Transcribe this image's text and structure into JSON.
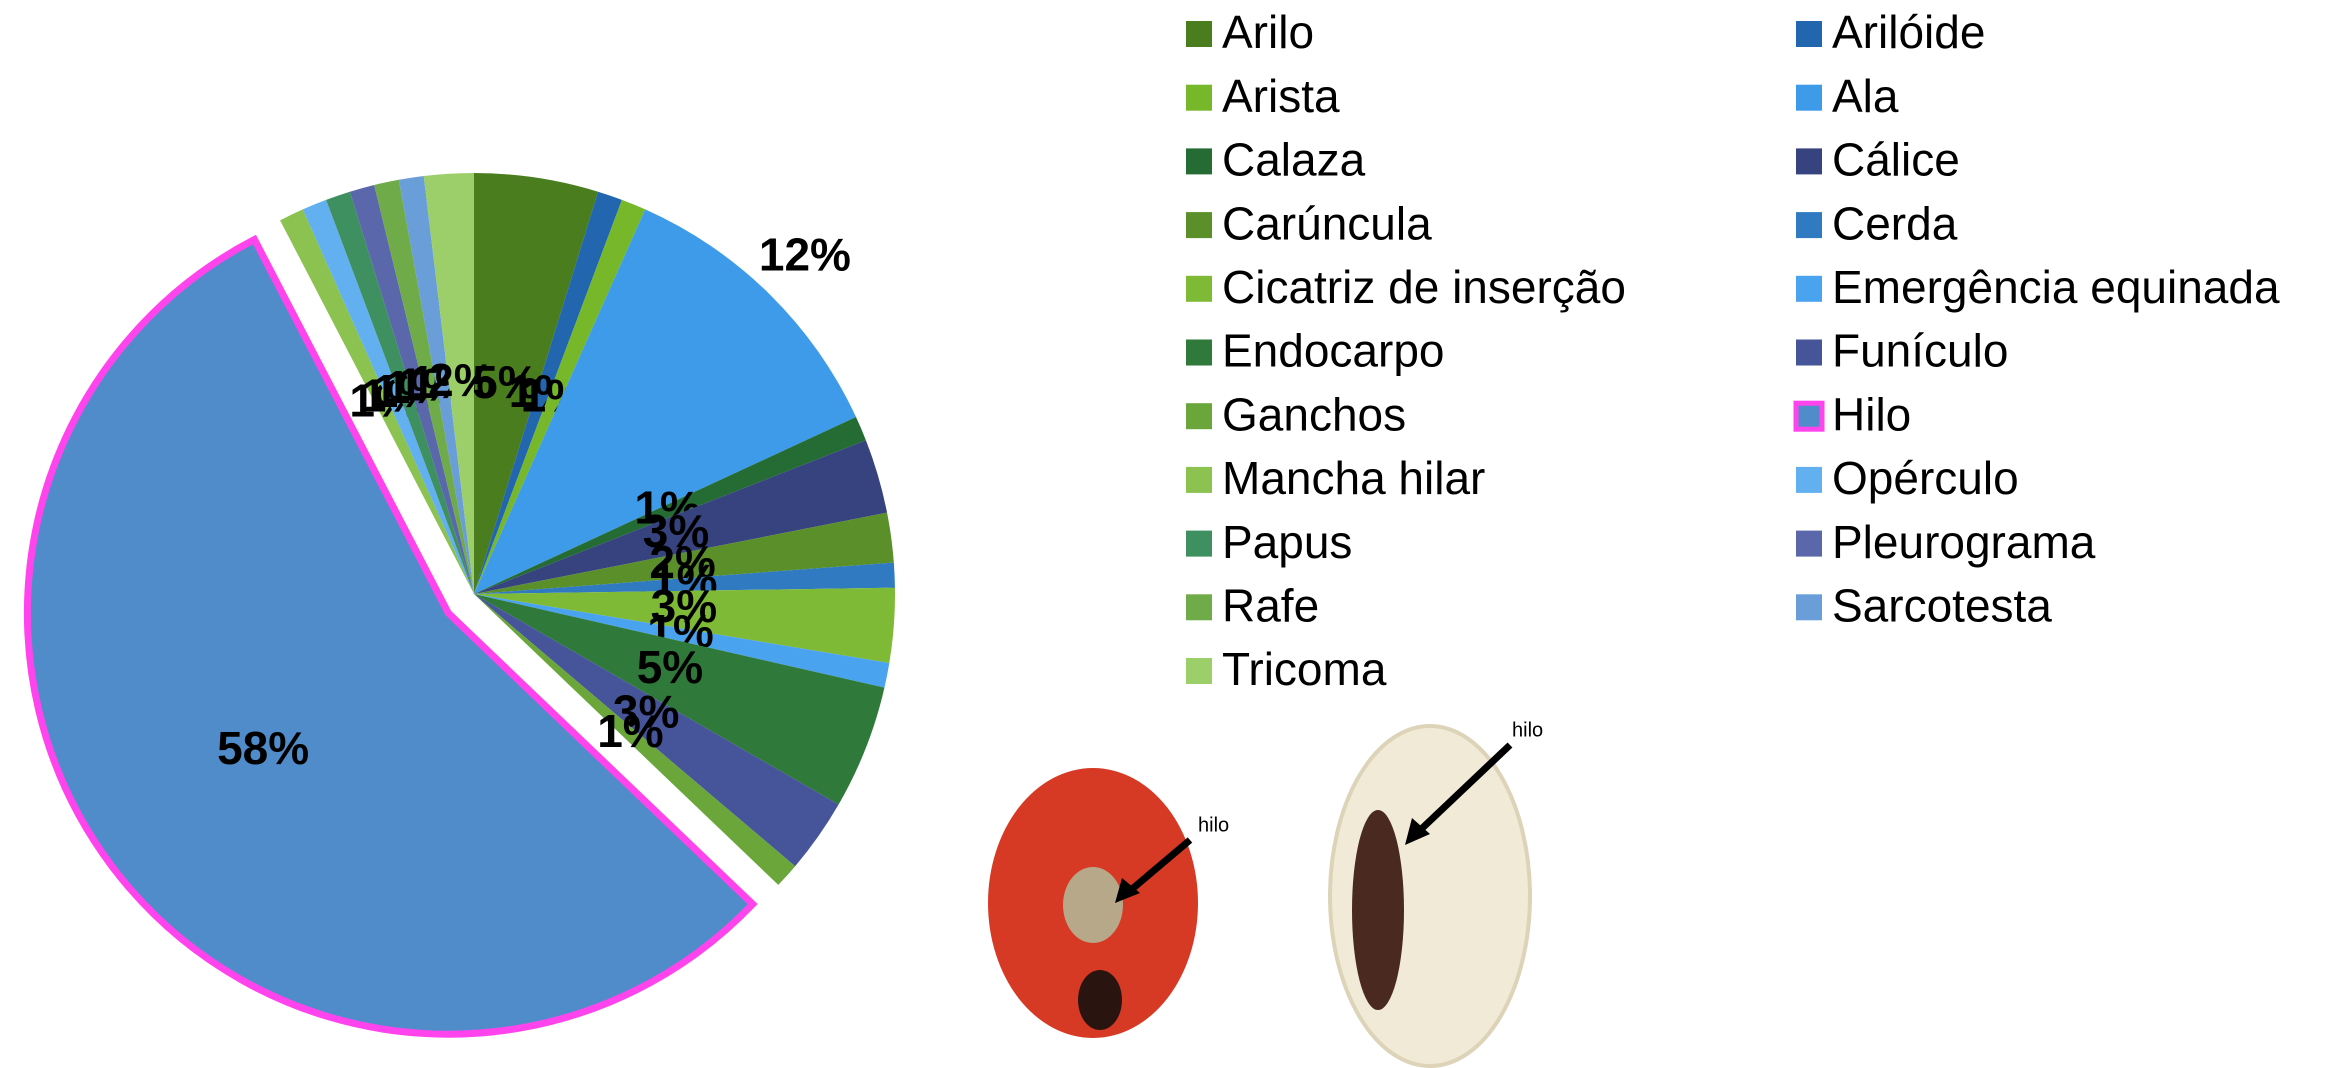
{
  "chart_data": {
    "type": "pie",
    "categories": [
      "Arilo",
      "Arilóide",
      "Arista",
      "Ala",
      "Calaza",
      "Cálice",
      "Carúncula",
      "Cerda",
      "Cicatriz de inserção",
      "Emergência equinada",
      "Endocarpo",
      "Funículo",
      "Ganchos",
      "Hilo",
      "Mancha hilar",
      "Opérculo",
      "Papus",
      "Pleurograma",
      "Rafe",
      "Sarcotesta",
      "Tricoma"
    ],
    "values": [
      5,
      1,
      1,
      12,
      1,
      3,
      2,
      1,
      3,
      1,
      5,
      3,
      1,
      58,
      1,
      1,
      1,
      1,
      1,
      1,
      2
    ],
    "value_labels": [
      "5%",
      "1%",
      "1%",
      "12%",
      "1%",
      "3%",
      "2%",
      "1%",
      "3%",
      "1%",
      "5%",
      "3%",
      "1%",
      "58%",
      "1%",
      "1%",
      "1%",
      "1%",
      "1%",
      "1%",
      "2%"
    ],
    "colors": [
      "#4a7d1e",
      "#2266b0",
      "#76b82a",
      "#3d9be9",
      "#256b34",
      "#37437f",
      "#5a8f2a",
      "#2f7ac0",
      "#7fba36",
      "#4aa3ee",
      "#2f7a3a",
      "#46559a",
      "#6aa63a",
      "#4f8cc9",
      "#8cc250",
      "#62b0f0",
      "#3f9060",
      "#5a67aa",
      "#70ab4a",
      "#6a9ed8",
      "#9ccf6a"
    ],
    "highlight": "Hilo",
    "highlight_color": "#ff44ee",
    "legend": "right"
  },
  "images": [
    {
      "label": "hilo"
    },
    {
      "label": "hilo"
    }
  ]
}
